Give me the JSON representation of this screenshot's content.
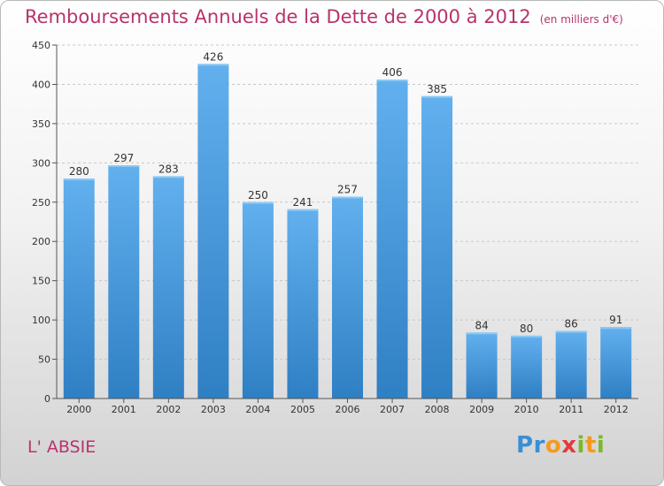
{
  "title": "Remboursements Annuels de la Dette de 2000 à 2012",
  "subtitle": "(en milliers d'€)",
  "place": "L' ABSIE",
  "logo": {
    "letters": [
      "P",
      "r",
      "o",
      "x",
      "i",
      "t",
      "i"
    ],
    "colors": [
      "#3a8fd6",
      "#3a8fd6",
      "#f39a1e",
      "#e03c3c",
      "#7ab929",
      "#f39a1e",
      "#7ab929"
    ]
  },
  "chart_data": {
    "type": "bar",
    "categories": [
      "2000",
      "2001",
      "2002",
      "2003",
      "2004",
      "2005",
      "2006",
      "2007",
      "2008",
      "2009",
      "2010",
      "2011",
      "2012"
    ],
    "values": [
      280,
      297,
      283,
      426,
      250,
      241,
      257,
      406,
      385,
      84,
      80,
      86,
      91
    ],
    "ylim": [
      0,
      450
    ],
    "yticks": [
      0,
      50,
      100,
      150,
      200,
      250,
      300,
      350,
      400,
      450
    ],
    "grid": true,
    "bar_color": "#4a9be0"
  }
}
